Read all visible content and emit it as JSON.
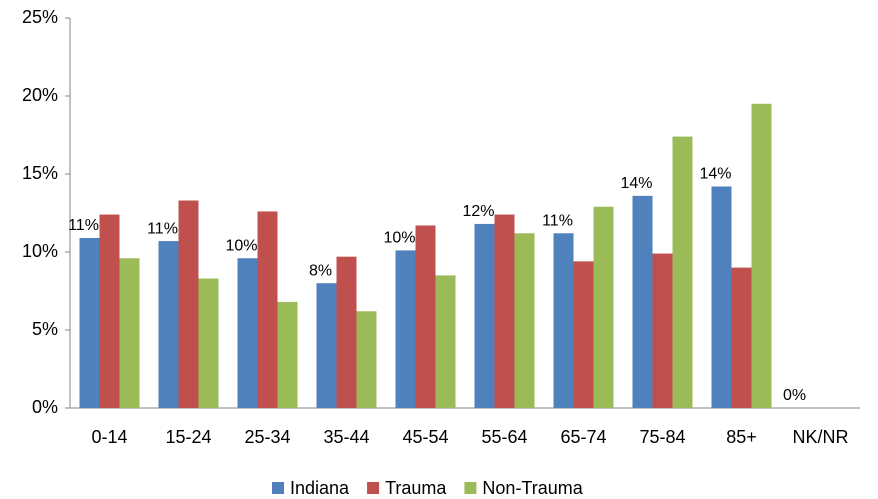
{
  "chart_data": {
    "type": "bar",
    "categories": [
      "0-14",
      "15-24",
      "25-34",
      "35-44",
      "45-54",
      "55-64",
      "65-74",
      "75-84",
      "85+",
      "NK/NR"
    ],
    "series": [
      {
        "name": "Indiana",
        "color": "#4f81bd",
        "values": [
          10.9,
          10.7,
          9.6,
          8.0,
          10.1,
          11.8,
          11.2,
          13.6,
          14.2,
          0
        ],
        "value_labels": [
          "11%",
          "11%",
          "10%",
          "8%",
          "10%",
          "12%",
          "11%",
          "14%",
          "14%",
          "0%"
        ]
      },
      {
        "name": "Trauma",
        "color": "#c0504d",
        "values": [
          12.4,
          13.3,
          12.6,
          9.7,
          11.7,
          12.4,
          9.4,
          9.9,
          9.0,
          0
        ]
      },
      {
        "name": "Non-Trauma",
        "color": "#9bbb59",
        "values": [
          9.6,
          8.3,
          6.8,
          6.2,
          8.5,
          11.2,
          12.9,
          17.4,
          19.5,
          0
        ]
      }
    ],
    "ylim": [
      0,
      25
    ],
    "yticks": [
      {
        "value": 0,
        "label": "0%"
      },
      {
        "value": 5,
        "label": "5%"
      },
      {
        "value": 10,
        "label": "10%"
      },
      {
        "value": 15,
        "label": "15%"
      },
      {
        "value": 20,
        "label": "20%"
      },
      {
        "value": 25,
        "label": "25%"
      }
    ],
    "grid": false,
    "legend": "bottom"
  }
}
